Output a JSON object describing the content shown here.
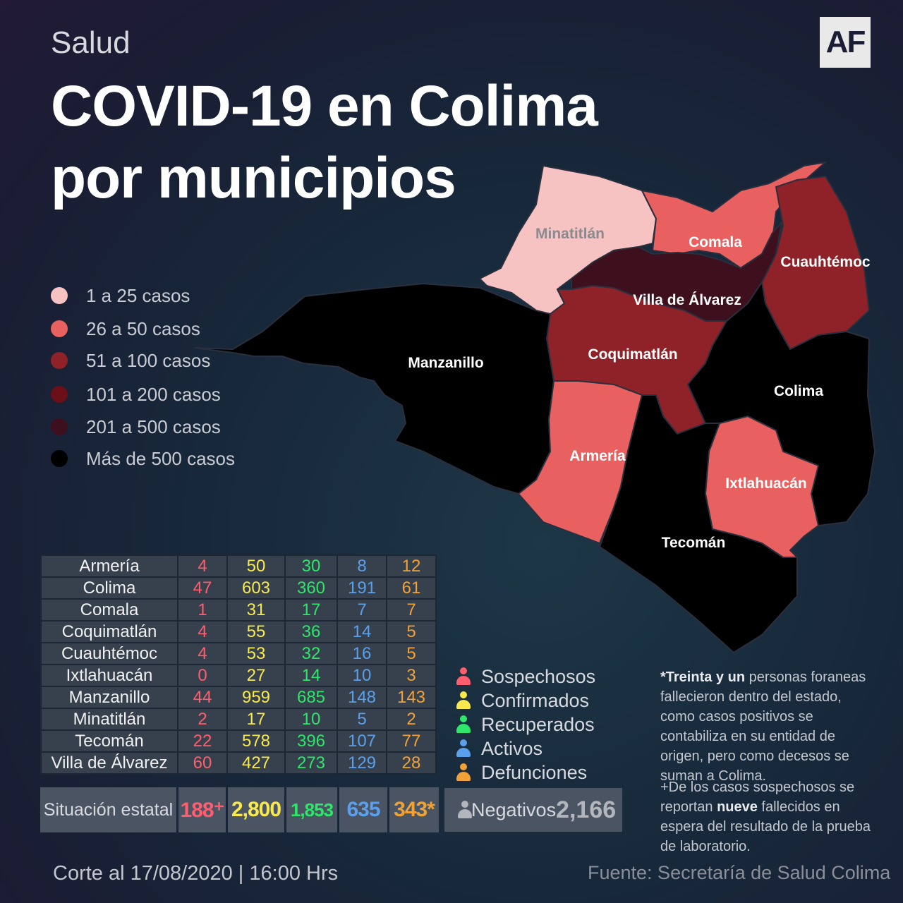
{
  "header": {
    "section": "Salud",
    "title_line1": "COVID-19 en Colima",
    "title_line2": "por municipios",
    "logo": "AF"
  },
  "legend": [
    {
      "label": "1 a 25 casos",
      "color": "#f6c2c2"
    },
    {
      "label": "26 a  50 casos",
      "color": "#e8605f"
    },
    {
      "label": "51 a  100 casos",
      "color": "#8f2228"
    },
    {
      "label": "101 a  200 casos",
      "color": "#6b0f18"
    },
    {
      "label": "201  a  500 casos",
      "color": "#3e0f1d"
    },
    {
      "label": "Más de 500 casos",
      "color": "#000000"
    }
  ],
  "map": {
    "municipalities": [
      {
        "name": "Minatitlán",
        "fill": "#f6c2c2",
        "label_color": "#8a8a8f"
      },
      {
        "name": "Comala",
        "fill": "#e8605f",
        "label_color": "#ffffff"
      },
      {
        "name": "Cuauhtémoc",
        "fill": "#8f2228",
        "label_color": "#ffffff"
      },
      {
        "name": "Villa de Álvarez",
        "fill": "#3e0f1d",
        "label_color": "#ffffff"
      },
      {
        "name": "Manzanillo",
        "fill": "#000000",
        "label_color": "#ffffff"
      },
      {
        "name": "Coquimatlán",
        "fill": "#8f2228",
        "label_color": "#ffffff"
      },
      {
        "name": "Colima",
        "fill": "#000000",
        "label_color": "#ffffff"
      },
      {
        "name": "Armería",
        "fill": "#e8605f",
        "label_color": "#ffffff"
      },
      {
        "name": "Ixtlahuacán",
        "fill": "#e8605f",
        "label_color": "#ffffff"
      },
      {
        "name": "Tecomán",
        "fill": "#000000",
        "label_color": "#ffffff"
      }
    ]
  },
  "table": {
    "rows": [
      {
        "municipio": "Armería",
        "sospechosos": "4",
        "confirmados": "50",
        "recuperados": "30",
        "activos": "8",
        "defunciones": "12"
      },
      {
        "municipio": "Colima",
        "sospechosos": "47",
        "confirmados": "603",
        "recuperados": "360",
        "activos": "191",
        "defunciones": "61"
      },
      {
        "municipio": "Comala",
        "sospechosos": "1",
        "confirmados": "31",
        "recuperados": "17",
        "activos": "7",
        "defunciones": "7"
      },
      {
        "municipio": "Coquimatlán",
        "sospechosos": "4",
        "confirmados": "55",
        "recuperados": "36",
        "activos": "14",
        "defunciones": "5"
      },
      {
        "municipio": "Cuauhtémoc",
        "sospechosos": "4",
        "confirmados": "53",
        "recuperados": "32",
        "activos": "16",
        "defunciones": "5"
      },
      {
        "municipio": "Ixtlahuacán",
        "sospechosos": "0",
        "confirmados": "27",
        "recuperados": "14",
        "activos": "10",
        "defunciones": "3"
      },
      {
        "municipio": "Manzanillo",
        "sospechosos": "44",
        "confirmados": "959",
        "recuperados": "685",
        "activos": "148",
        "defunciones": "143"
      },
      {
        "municipio": "Minatitlán",
        "sospechosos": "2",
        "confirmados": "17",
        "recuperados": "10",
        "activos": "5",
        "defunciones": "2"
      },
      {
        "municipio": "Tecomán",
        "sospechosos": "22",
        "confirmados": "578",
        "recuperados": "396",
        "activos": "107",
        "defunciones": "77"
      },
      {
        "municipio": "Villa de Álvarez",
        "sospechosos": "60",
        "confirmados": "427",
        "recuperados": "273",
        "activos": "129",
        "defunciones": "28"
      }
    ],
    "totals": {
      "label": "Situación estatal",
      "sospechosos": "188⁺",
      "confirmados": "2,800",
      "recuperados": "1,853",
      "activos": "635",
      "defunciones": "343*"
    }
  },
  "key": [
    {
      "label": "Sospechosos",
      "color": "#ff5e6e"
    },
    {
      "label": "Confirmados",
      "color": "#f7e94e"
    },
    {
      "label": "Recuperados",
      "color": "#2ee66a"
    },
    {
      "label": "Activos",
      "color": "#5aa0ea"
    },
    {
      "label": "Defunciones",
      "color": "#f0a236"
    }
  ],
  "negativos": {
    "label": "Negativos",
    "value": "2,166",
    "icon": "person-icon",
    "color": "#b3b6bd"
  },
  "notes": {
    "note1_bold": "*Treinta y un",
    "note1_rest": " personas foraneas fallecieron dentro del estado, como casos positivos se contabiliza en su entidad de origen, pero como decesos se suman a Colima.",
    "note2_a": "+De los casos sospechosos se reportan ",
    "note2_bold": "nueve",
    "note2_b": " fallecidos en espera del resultado de la prueba de laboratorio."
  },
  "footer": {
    "corte": "Corte al  17/08/2020 | 16:00 Hrs",
    "fuente": "Fuente: Secretaría de Salud Colima"
  }
}
